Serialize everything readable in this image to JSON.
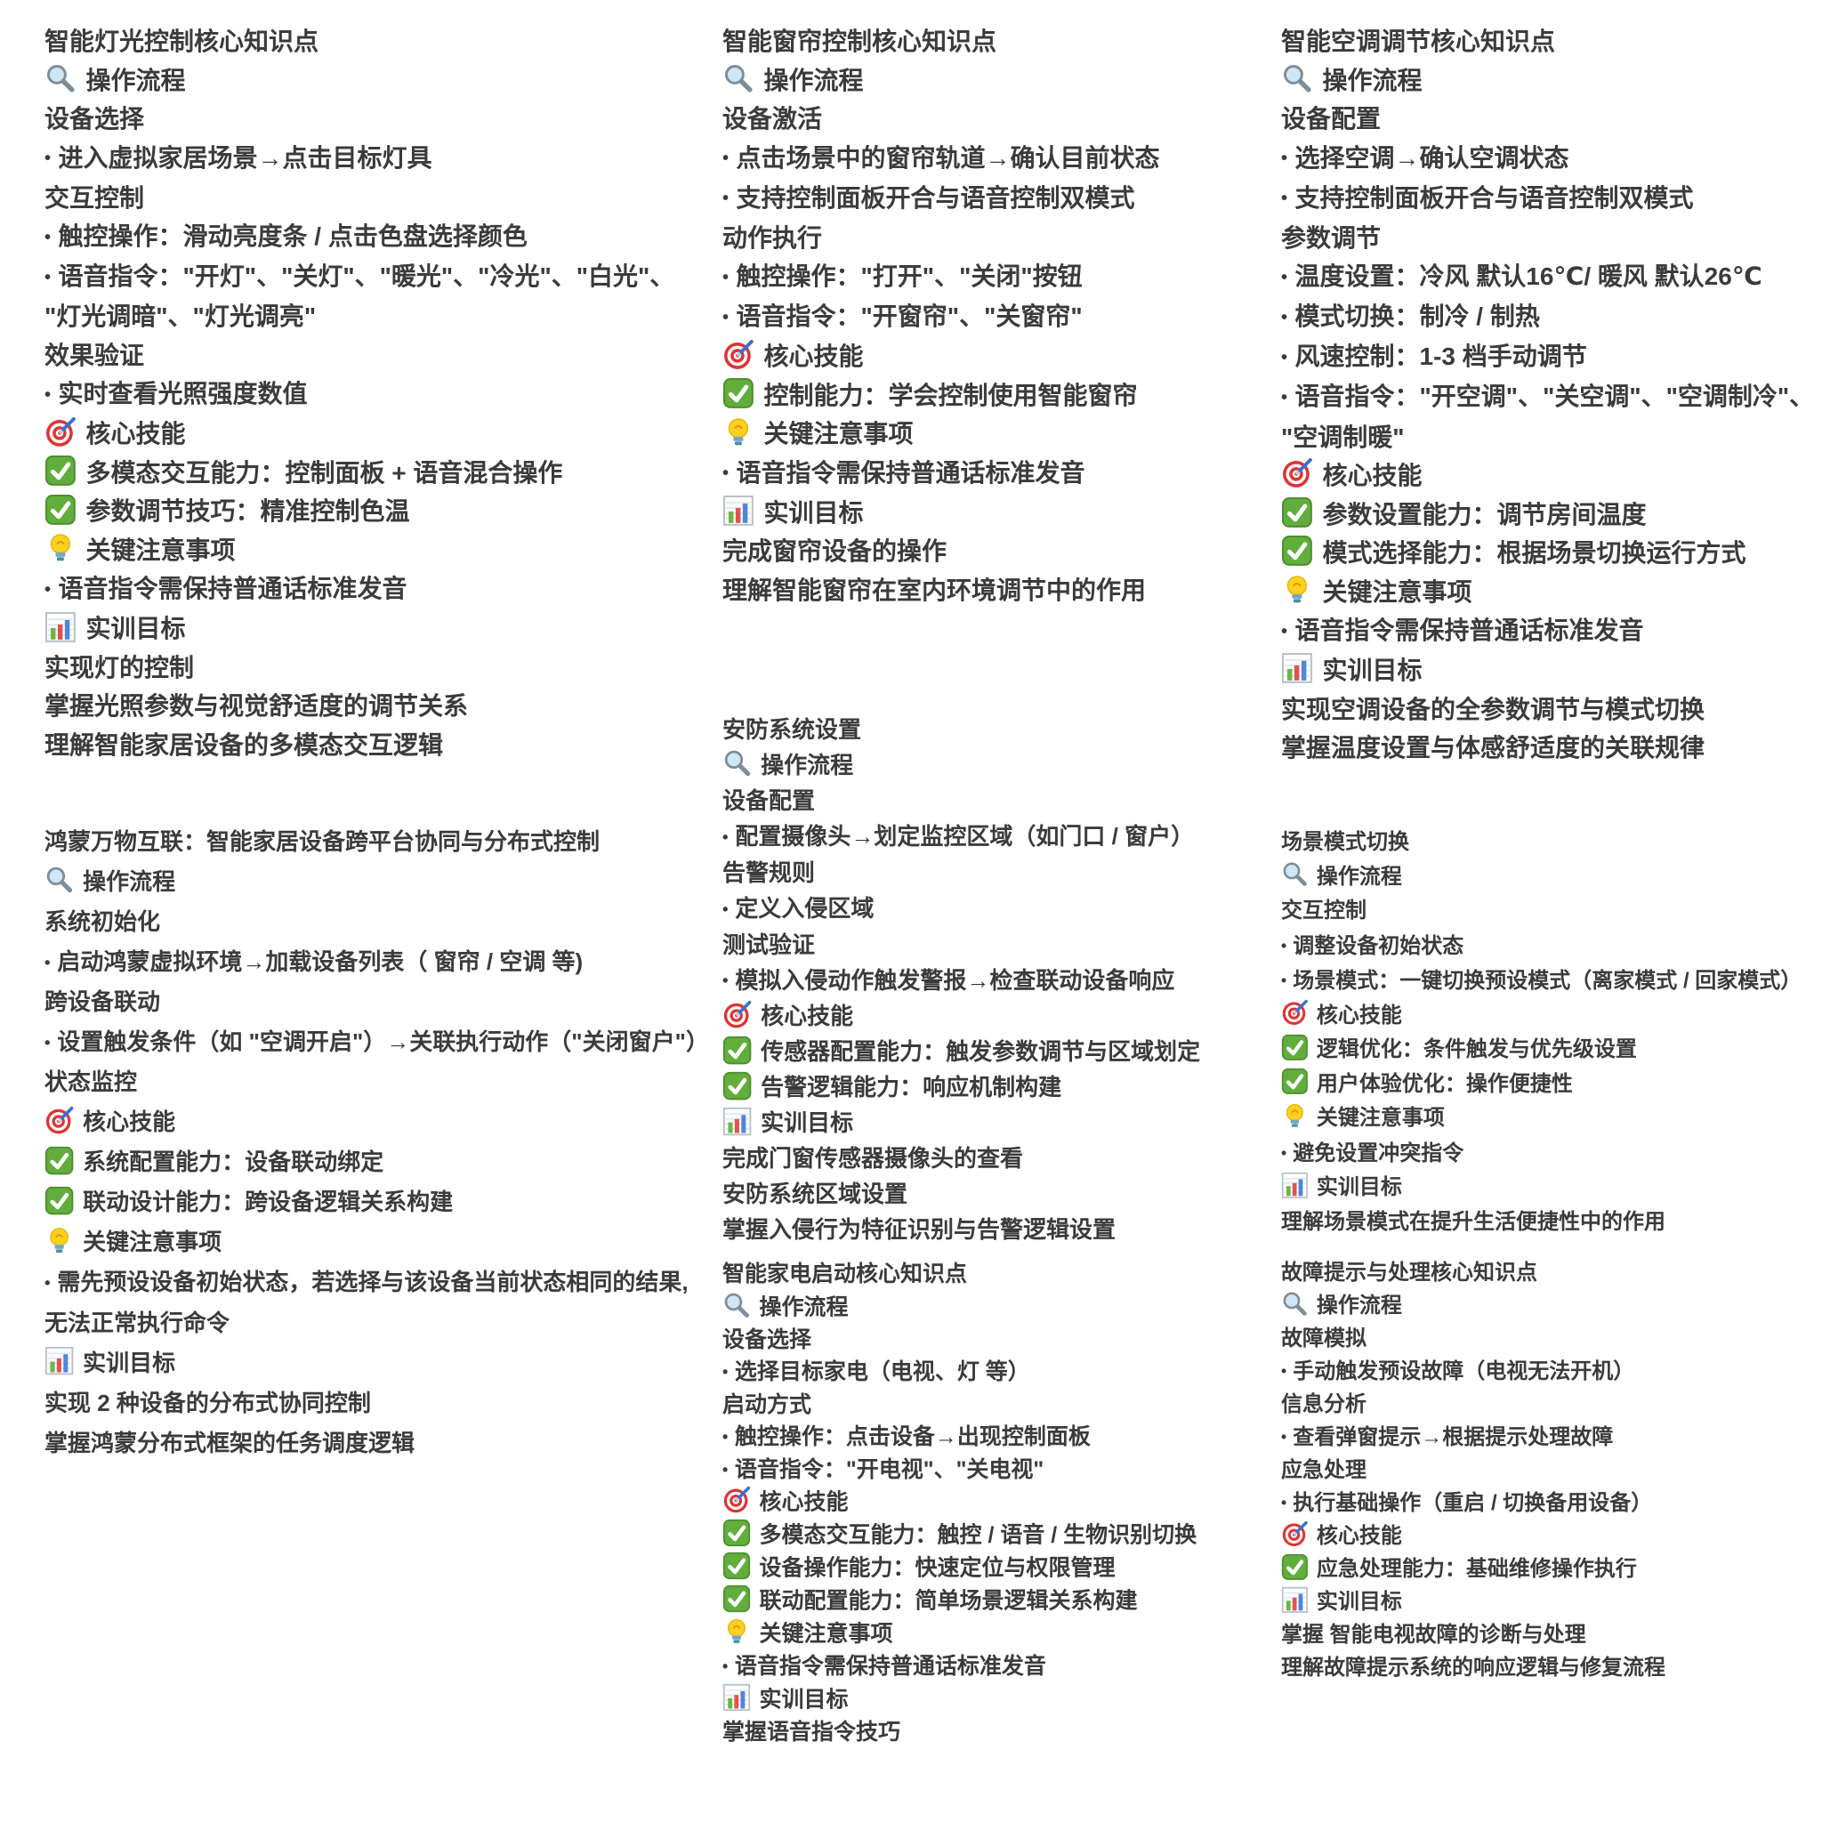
{
  "page": {
    "background": "#ffffff",
    "text_color": "#3b3b3b"
  },
  "icon_colors": {
    "search_rim": "#7e8d98",
    "search_lens": "#cfe7f4",
    "target_red": "#dd3434",
    "dart_blue": "#3b6fd4",
    "check_green": "#61ae3c",
    "check_border": "#4c8f2f",
    "bulb_yellow": "#fbd020",
    "bulb_base": "#6fa9c4",
    "chart_frame": "#b6bfc7",
    "chart_bars": [
      "#6cb644",
      "#e05252",
      "#4f86d8"
    ]
  },
  "columns": [
    {
      "sections": [
        {
          "title": "智能灯光控制核心知识点",
          "lines": [
            {
              "icon": "search-icon",
              "text": "操作流程"
            },
            {
              "text": "设备选择"
            },
            {
              "bullet": true,
              "text": "进入虚拟家居场景→点击目标灯具"
            },
            {
              "text": "交互控制"
            },
            {
              "bullet": true,
              "text": "触控操作：滑动亮度条 / 点击色盘选择颜色"
            },
            {
              "bullet": true,
              "text": "语音指令：\"开灯\"、\"关灯\"、\"暖光\"、\"冷光\"、\"白光\"、"
            },
            {
              "text": "\"灯光调暗\"、\"灯光调亮\""
            },
            {
              "text": "效果验证"
            },
            {
              "bullet": true,
              "text": "实时查看光照强度数值"
            },
            {
              "icon": "target-icon",
              "text": "核心技能"
            },
            {
              "icon": "check-icon",
              "text": "多模态交互能力：控制面板 + 语音混合操作"
            },
            {
              "icon": "check-icon",
              "text": "参数调节技巧：精准控制色温"
            },
            {
              "icon": "bulb-icon",
              "text": "关键注意事项"
            },
            {
              "bullet": true,
              "text": "语音指令需保持普通话标准发音"
            },
            {
              "icon": "chart-icon",
              "text": "实训目标"
            },
            {
              "text": "实现灯的控制"
            },
            {
              "text": "掌握光照参数与视觉舒适度的调节关系"
            },
            {
              "text": "理解智能家居设备的多模态交互逻辑"
            }
          ]
        },
        {
          "title": "鸿蒙万物互联：智能家居设备跨平台协同与分布式控制",
          "lines": [
            {
              "icon": "search-icon",
              "text": "操作流程"
            },
            {
              "text": "系统初始化"
            },
            {
              "bullet": true,
              "text": "启动鸿蒙虚拟环境→加载设备列表（ 窗帘 / 空调 等)"
            },
            {
              "text": "跨设备联动"
            },
            {
              "bullet": true,
              "text": "设置触发条件（如 \"空调开启\"）→关联执行动作（\"关闭窗户\"）"
            },
            {
              "text": "状态监控"
            },
            {
              "icon": "target-icon",
              "text": "核心技能"
            },
            {
              "icon": "check-icon",
              "text": "系统配置能力：设备联动绑定"
            },
            {
              "icon": "check-icon",
              "text": "联动设计能力：跨设备逻辑关系构建"
            },
            {
              "icon": "bulb-icon",
              "text": "关键注意事项"
            },
            {
              "bullet": true,
              "text": "需先预设设备初始状态，若选择与该设备当前状态相同的结果,"
            },
            {
              "text": "无法正常执行命令"
            },
            {
              "icon": "chart-icon",
              "text": "实训目标"
            },
            {
              "text": "实现 2 种设备的分布式协同控制"
            },
            {
              "text": "掌握鸿蒙分布式框架的任务调度逻辑"
            }
          ]
        }
      ]
    },
    {
      "sections": [
        {
          "title": "智能窗帘控制核心知识点",
          "lines": [
            {
              "icon": "search-icon",
              "text": "操作流程"
            },
            {
              "text": "设备激活"
            },
            {
              "bullet": true,
              "text": "点击场景中的窗帘轨道→确认目前状态"
            },
            {
              "bullet": true,
              "text": "支持控制面板开合与语音控制双模式"
            },
            {
              "text": "动作执行"
            },
            {
              "bullet": true,
              "text": "触控操作：\"打开\"、\"关闭\"按钮"
            },
            {
              "bullet": true,
              "text": "语音指令：\"开窗帘\"、\"关窗帘\""
            },
            {
              "icon": "target-icon",
              "text": "核心技能"
            },
            {
              "icon": "check-icon",
              "text": "控制能力：学会控制使用智能窗帘"
            },
            {
              "icon": "bulb-icon",
              "text": "关键注意事项"
            },
            {
              "bullet": true,
              "text": "语音指令需保持普通话标准发音"
            },
            {
              "icon": "chart-icon",
              "text": "实训目标"
            },
            {
              "text": "完成窗帘设备的操作"
            },
            {
              "text": "理解智能窗帘在室内环境调节中的作用"
            }
          ]
        },
        {
          "title": "安防系统设置",
          "lines": [
            {
              "icon": "search-icon",
              "text": "操作流程"
            },
            {
              "text": "设备配置"
            },
            {
              "bullet": true,
              "text": "配置摄像头→划定监控区域（如门口 / 窗户）"
            },
            {
              "text": "告警规则"
            },
            {
              "bullet": true,
              "text": "定义入侵区域"
            },
            {
              "text": "测试验证"
            },
            {
              "bullet": true,
              "text": "模拟入侵动作触发警报→检查联动设备响应"
            },
            {
              "icon": "target-icon",
              "text": "核心技能"
            },
            {
              "icon": "check-icon",
              "text": "传感器配置能力：触发参数调节与区域划定"
            },
            {
              "icon": "check-icon",
              "text": "告警逻辑能力：响应机制构建"
            },
            {
              "icon": "chart-icon",
              "text": "实训目标"
            },
            {
              "text": "完成门窗传感器摄像头的查看"
            },
            {
              "text": "安防系统区域设置"
            },
            {
              "text": "掌握入侵行为特征识别与告警逻辑设置"
            }
          ]
        },
        {
          "title": "智能家电启动核心知识点",
          "lines": [
            {
              "icon": "search-icon",
              "text": "操作流程"
            },
            {
              "text": "设备选择"
            },
            {
              "bullet": true,
              "text": "选择目标家电（电视、灯 等）"
            },
            {
              "text": "启动方式"
            },
            {
              "bullet": true,
              "text": "触控操作：点击设备→出现控制面板"
            },
            {
              "bullet": true,
              "text": "语音指令：\"开电视\"、\"关电视\""
            },
            {
              "icon": "target-icon",
              "text": "核心技能"
            },
            {
              "icon": "check-icon",
              "text": "多模态交互能力：触控 / 语音 / 生物识别切换"
            },
            {
              "icon": "check-icon",
              "text": "设备操作能力：快速定位与权限管理"
            },
            {
              "icon": "check-icon",
              "text": "联动配置能力：简单场景逻辑关系构建"
            },
            {
              "icon": "bulb-icon",
              "text": "关键注意事项"
            },
            {
              "bullet": true,
              "text": "语音指令需保持普通话标准发音"
            },
            {
              "icon": "chart-icon",
              "text": "实训目标"
            },
            {
              "text": "掌握语音指令技巧"
            }
          ]
        }
      ]
    },
    {
      "sections": [
        {
          "title": "智能空调调节核心知识点",
          "lines": [
            {
              "icon": "search-icon",
              "text": "操作流程"
            },
            {
              "text": "设备配置"
            },
            {
              "bullet": true,
              "text": "选择空调→确认空调状态"
            },
            {
              "bullet": true,
              "text": "支持控制面板开合与语音控制双模式"
            },
            {
              "text": "参数调节"
            },
            {
              "bullet": true,
              "text": "温度设置：冷风 默认16℃/ 暖风 默认26℃"
            },
            {
              "bullet": true,
              "text": "模式切换：制冷 / 制热"
            },
            {
              "bullet": true,
              "text": "风速控制：1-3 档手动调节"
            },
            {
              "bullet": true,
              "text": "语音指令：\"开空调\"、\"关空调\"、\"空调制冷\"、"
            },
            {
              "text": "\"空调制暖\""
            },
            {
              "icon": "target-icon",
              "text": "核心技能"
            },
            {
              "icon": "check-icon",
              "text": "参数设置能力：调节房间温度"
            },
            {
              "icon": "check-icon",
              "text": "模式选择能力：根据场景切换运行方式"
            },
            {
              "icon": "bulb-icon",
              "text": "关键注意事项"
            },
            {
              "bullet": true,
              "text": "语音指令需保持普通话标准发音"
            },
            {
              "icon": "chart-icon",
              "text": "实训目标"
            },
            {
              "text": "实现空调设备的全参数调节与模式切换"
            },
            {
              "text": "掌握温度设置与体感舒适度的关联规律"
            }
          ]
        },
        {
          "title": "场景模式切换",
          "lines": [
            {
              "icon": "search-icon",
              "text": "操作流程"
            },
            {
              "text": "交互控制"
            },
            {
              "bullet": true,
              "text": "调整设备初始状态"
            },
            {
              "bullet": true,
              "text": "场景模式：一键切换预设模式（离家模式 / 回家模式）"
            },
            {
              "icon": "target-icon",
              "text": "核心技能"
            },
            {
              "icon": "check-icon",
              "text": "逻辑优化：条件触发与优先级设置"
            },
            {
              "icon": "check-icon",
              "text": "用户体验优化：操作便捷性"
            },
            {
              "icon": "bulb-icon",
              "text": "关键注意事项"
            },
            {
              "bullet": true,
              "text": "避免设置冲突指令"
            },
            {
              "icon": "chart-icon",
              "text": "实训目标"
            },
            {
              "text": "理解场景模式在提升生活便捷性中的作用"
            }
          ]
        },
        {
          "title": "故障提示与处理核心知识点",
          "lines": [
            {
              "icon": "search-icon",
              "text": "操作流程"
            },
            {
              "text": "故障模拟"
            },
            {
              "bullet": true,
              "text": "手动触发预设故障（电视无法开机）"
            },
            {
              "text": "信息分析"
            },
            {
              "bullet": true,
              "text": "查看弹窗提示→根据提示处理故障"
            },
            {
              "text": "应急处理"
            },
            {
              "bullet": true,
              "text": "执行基础操作（重启 / 切换备用设备）"
            },
            {
              "icon": "target-icon",
              "text": "核心技能"
            },
            {
              "icon": "check-icon",
              "text": "应急处理能力：基础维修操作执行"
            },
            {
              "icon": "chart-icon",
              "text": "实训目标"
            },
            {
              "text": "掌握 智能电视故障的诊断与处理"
            },
            {
              "text": "理解故障提示系统的响应逻辑与修复流程"
            }
          ]
        }
      ]
    }
  ]
}
